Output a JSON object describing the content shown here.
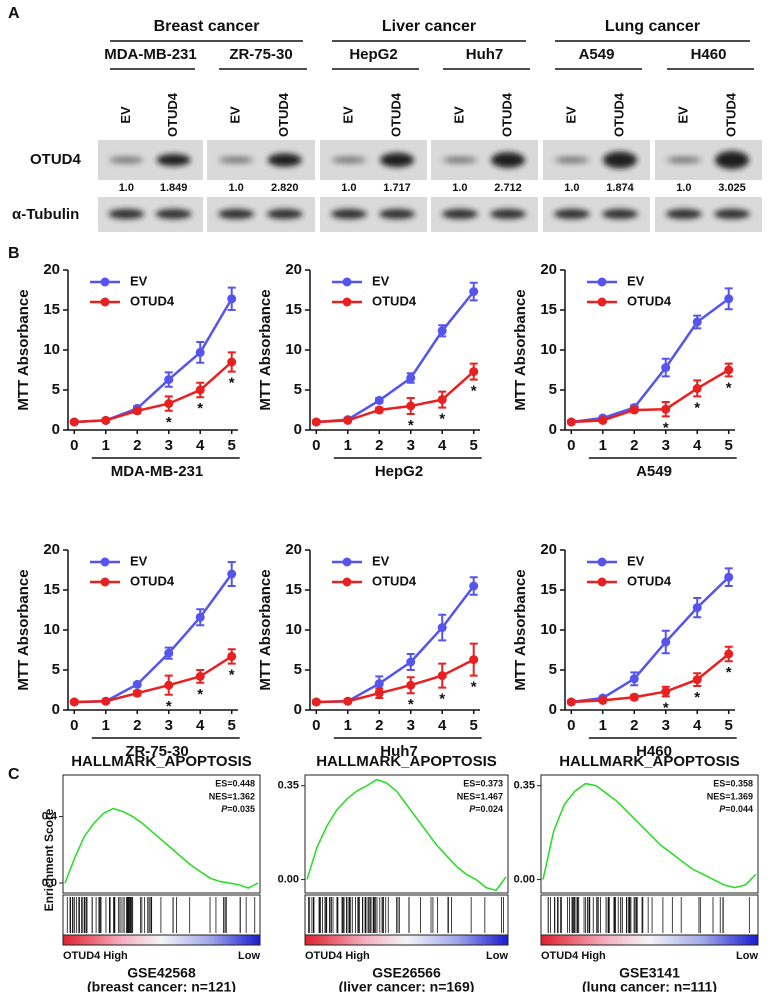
{
  "panel_a": {
    "label": "A",
    "lanes": [
      "EV",
      "OTUD4"
    ],
    "rows": [
      "OTUD4",
      "α-Tubulin"
    ],
    "groups": [
      {
        "name": "Breast cancer",
        "cell_lines": [
          {
            "name": "MDA-MB-231",
            "quant": [
              "1.0",
              "1.849"
            ]
          },
          {
            "name": "ZR-75-30",
            "quant": [
              "1.0",
              "2.820"
            ]
          }
        ]
      },
      {
        "name": "Liver cancer",
        "cell_lines": [
          {
            "name": "HepG2",
            "quant": [
              "1.0",
              "1.717"
            ]
          },
          {
            "name": "Huh7",
            "quant": [
              "1.0",
              "2.712"
            ]
          }
        ]
      },
      {
        "name": "Lung cancer",
        "cell_lines": [
          {
            "name": "A549",
            "quant": [
              "1.0",
              "1.874"
            ]
          },
          {
            "name": "H460",
            "quant": [
              "1.0",
              "3.025"
            ]
          }
        ]
      }
    ]
  },
  "panel_b": {
    "label": "B"
  },
  "panel_c": {
    "label": "C",
    "y_label": "Enrichment Score"
  },
  "chart_data": [
    {
      "type": "line",
      "x_label": "MDA-MB-231",
      "y_label": "MTT Absorbance",
      "x": [
        0,
        1,
        2,
        3,
        4,
        5
      ],
      "xlim": [
        -0.2,
        5.2
      ],
      "xticks": [
        0,
        1,
        2,
        3,
        4,
        5
      ],
      "ylim": [
        0,
        20
      ],
      "yticks": [
        0,
        5,
        10,
        15,
        20
      ],
      "series": [
        {
          "name": "EV",
          "color": "#5555ee",
          "values": [
            1,
            1.2,
            2.7,
            6.3,
            9.7,
            16.4
          ],
          "errors": [
            0.2,
            0.2,
            0.3,
            0.9,
            1.3,
            1.4
          ]
        },
        {
          "name": "OTUD4",
          "color": "#e82020",
          "values": [
            1,
            1.2,
            2.4,
            3.3,
            5.0,
            8.5
          ],
          "errors": [
            0.2,
            0.2,
            0.3,
            0.9,
            0.9,
            1.2
          ]
        }
      ],
      "annotations": [
        {
          "text": "*",
          "x": 3
        },
        {
          "text": "*",
          "x": 4
        },
        {
          "text": "*",
          "x": 5
        }
      ]
    },
    {
      "type": "line",
      "x_label": "HepG2",
      "y_label": "MTT Absorbance",
      "x": [
        0,
        1,
        2,
        3,
        4,
        5
      ],
      "xlim": [
        -0.2,
        5.2
      ],
      "xticks": [
        0,
        1,
        2,
        3,
        4,
        5
      ],
      "ylim": [
        0,
        20
      ],
      "yticks": [
        0,
        5,
        10,
        15,
        20
      ],
      "series": [
        {
          "name": "EV",
          "color": "#5555ee",
          "values": [
            1,
            1.3,
            3.7,
            6.5,
            12.4,
            17.3
          ],
          "errors": [
            0.2,
            0.2,
            0.3,
            0.6,
            0.7,
            1.1
          ]
        },
        {
          "name": "OTUD4",
          "color": "#e82020",
          "values": [
            1,
            1.2,
            2.5,
            3,
            3.8,
            7.3
          ],
          "errors": [
            0.2,
            0.2,
            0.3,
            1,
            1,
            1
          ]
        }
      ],
      "annotations": [
        {
          "text": "*",
          "x": 3
        },
        {
          "text": "*",
          "x": 4
        },
        {
          "text": "*",
          "x": 5
        }
      ]
    },
    {
      "type": "line",
      "x_label": "A549",
      "y_label": "MTT Absorbance",
      "x": [
        0,
        1,
        2,
        3,
        4,
        5
      ],
      "xlim": [
        -0.2,
        5.2
      ],
      "xticks": [
        0,
        1,
        2,
        3,
        4,
        5
      ],
      "ylim": [
        0,
        20
      ],
      "yticks": [
        0,
        5,
        10,
        15,
        20
      ],
      "series": [
        {
          "name": "EV",
          "color": "#5555ee",
          "values": [
            1,
            1.5,
            2.8,
            7.8,
            13.5,
            16.4
          ],
          "errors": [
            0.2,
            0.2,
            0.3,
            1.1,
            0.8,
            1.3
          ]
        },
        {
          "name": "OTUD4",
          "color": "#e82020",
          "values": [
            1,
            1.2,
            2.5,
            2.6,
            5.2,
            7.5
          ],
          "errors": [
            0.2,
            0.2,
            0.3,
            0.9,
            1,
            0.8
          ]
        }
      ],
      "annotations": [
        {
          "text": "*",
          "x": 3
        },
        {
          "text": "*",
          "x": 4
        },
        {
          "text": "*",
          "x": 5
        }
      ]
    },
    {
      "type": "line",
      "x_label": "ZR-75-30",
      "y_label": "MTT Absorbance",
      "x": [
        0,
        1,
        2,
        3,
        4,
        5
      ],
      "xlim": [
        -0.2,
        5.2
      ],
      "xticks": [
        0,
        1,
        2,
        3,
        4,
        5
      ],
      "ylim": [
        0,
        20
      ],
      "yticks": [
        0,
        5,
        10,
        15,
        20
      ],
      "series": [
        {
          "name": "EV",
          "color": "#5555ee",
          "values": [
            1,
            1.1,
            3.2,
            7.1,
            11.6,
            17
          ],
          "errors": [
            0.2,
            0.2,
            0.2,
            0.7,
            1,
            1.5
          ]
        },
        {
          "name": "OTUD4",
          "color": "#e82020",
          "values": [
            1,
            1.1,
            2.1,
            3.1,
            4.2,
            6.7
          ],
          "errors": [
            0.2,
            0.2,
            0.3,
            1.2,
            0.8,
            0.9
          ]
        }
      ],
      "annotations": [
        {
          "text": "*",
          "x": 3
        },
        {
          "text": "*",
          "x": 4
        },
        {
          "text": "*",
          "x": 5
        }
      ]
    },
    {
      "type": "line",
      "x_label": "Huh7",
      "y_label": "MTT Absorbance",
      "x": [
        0,
        1,
        2,
        3,
        4,
        5
      ],
      "xlim": [
        -0.2,
        5.2
      ],
      "xticks": [
        0,
        1,
        2,
        3,
        4,
        5
      ],
      "ylim": [
        0,
        20
      ],
      "yticks": [
        0,
        5,
        10,
        15,
        20
      ],
      "series": [
        {
          "name": "EV",
          "color": "#5555ee",
          "values": [
            1,
            1.1,
            3.3,
            6,
            10.3,
            15.5
          ],
          "errors": [
            0.2,
            0.2,
            0.9,
            1,
            1.6,
            1.1
          ]
        },
        {
          "name": "OTUD4",
          "color": "#e82020",
          "values": [
            1,
            1.1,
            2.1,
            3.1,
            4.3,
            6.3
          ],
          "errors": [
            0.2,
            0.2,
            0.6,
            1,
            1.5,
            2
          ]
        }
      ],
      "annotations": [
        {
          "text": "*",
          "x": 3
        },
        {
          "text": "*",
          "x": 4
        },
        {
          "text": "*",
          "x": 5
        }
      ]
    },
    {
      "type": "line",
      "x_label": "H460",
      "y_label": "MTT Absorbance",
      "x": [
        0,
        1,
        2,
        3,
        4,
        5
      ],
      "xlim": [
        -0.2,
        5.2
      ],
      "xticks": [
        0,
        1,
        2,
        3,
        4,
        5
      ],
      "ylim": [
        0,
        20
      ],
      "yticks": [
        0,
        5,
        10,
        15,
        20
      ],
      "series": [
        {
          "name": "EV",
          "color": "#5555ee",
          "values": [
            1,
            1.5,
            3.9,
            8.5,
            12.8,
            16.6
          ],
          "errors": [
            0.2,
            0.2,
            0.8,
            1.4,
            1.2,
            1.1
          ]
        },
        {
          "name": "OTUD4",
          "color": "#e82020",
          "values": [
            1,
            1.2,
            1.6,
            2.3,
            3.8,
            7
          ],
          "errors": [
            0.2,
            0.2,
            0.3,
            0.6,
            0.8,
            0.9
          ]
        }
      ],
      "annotations": [
        {
          "text": "*",
          "x": 3
        },
        {
          "text": "*",
          "x": 4
        },
        {
          "text": "*",
          "x": 5
        }
      ]
    },
    {
      "type": "enrichment",
      "title": "HALLMARK_APOPTOSIS",
      "color": "#22dd22",
      "ylim": [
        -0.06,
        0.65
      ],
      "yticks": [
        0.4,
        {
          "value": 0,
          "label": "0.0"
        }
      ],
      "values": [
        0,
        0.15,
        0.28,
        0.36,
        0.42,
        0.448,
        0.43,
        0.4,
        0.36,
        0.31,
        0.26,
        0.21,
        0.16,
        0.11,
        0.07,
        0.03,
        0.01,
        0,
        -0.01,
        -0.03,
        0
      ],
      "stats": [
        "ES=0.448",
        "NES=1.362"
      ],
      "p_symbol": "P",
      "p_value": "=0.035",
      "x_label_left": "OTUD4 High",
      "x_label_right": "Low",
      "dataset": "GSE42568",
      "subtitle": "(breast cancer; n=121)"
    },
    {
      "type": "enrichment",
      "title": "HALLMARK_APOPTOSIS",
      "color": "#22dd22",
      "ylim": [
        -0.05,
        0.39
      ],
      "yticks": [
        0.35,
        {
          "value": 0,
          "label": "0.00"
        }
      ],
      "values": [
        0,
        0.12,
        0.2,
        0.26,
        0.3,
        0.33,
        0.35,
        0.373,
        0.36,
        0.33,
        0.28,
        0.23,
        0.18,
        0.13,
        0.09,
        0.05,
        0.02,
        0,
        -0.03,
        -0.04,
        0.01
      ],
      "stats": [
        "ES=0.373",
        "NES=1.467"
      ],
      "p_symbol": "P",
      "p_value": "=0.024",
      "x_label_left": "OTUD4 High",
      "x_label_right": "Low",
      "dataset": "GSE26566",
      "subtitle": "(liver cancer; n=169)"
    },
    {
      "type": "enrichment",
      "title": "HALLMARK_APOPTOSIS",
      "color": "#22dd22",
      "ylim": [
        -0.05,
        0.39
      ],
      "yticks": [
        0.35,
        {
          "value": 0,
          "label": "0.00"
        }
      ],
      "values": [
        0,
        0.18,
        0.28,
        0.33,
        0.358,
        0.35,
        0.32,
        0.29,
        0.25,
        0.21,
        0.17,
        0.13,
        0.1,
        0.07,
        0.04,
        0.02,
        0,
        -0.02,
        -0.03,
        -0.02,
        0.02
      ],
      "stats": [
        "ES=0.358",
        "NES=1.369"
      ],
      "p_symbol": "P",
      "p_value": "=0.044",
      "x_label_left": "OTUD4 High",
      "x_label_right": "Low",
      "dataset": "GSE3141",
      "subtitle": "(lung cancer; n=111)"
    }
  ]
}
